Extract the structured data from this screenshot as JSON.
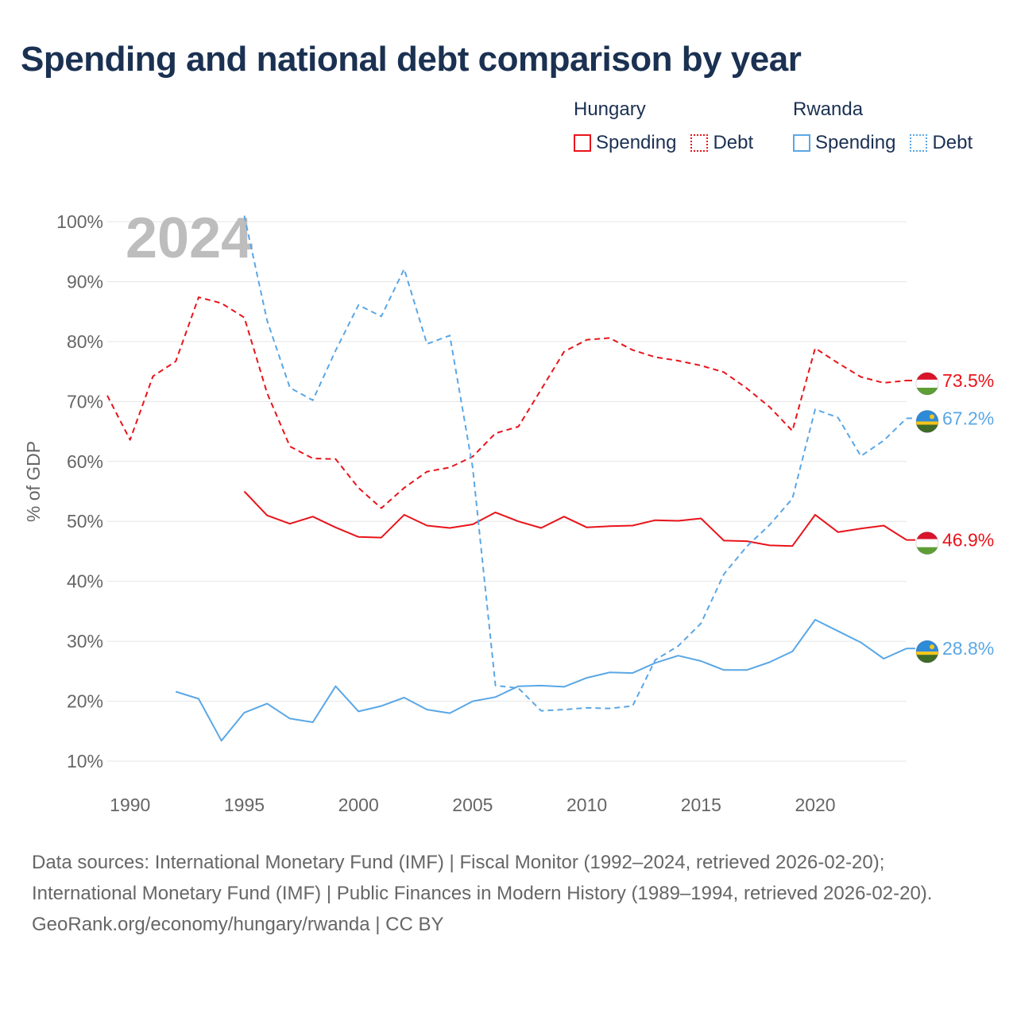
{
  "title": "Spending and national debt comparison by year",
  "legend": {
    "groups": [
      {
        "name": "Hungary",
        "color": "#e8141b",
        "items": [
          "Spending",
          "Debt"
        ]
      },
      {
        "name": "Rwanda",
        "color": "#5aa7e6",
        "items": [
          "Spending",
          "Debt"
        ]
      }
    ]
  },
  "chart_data": {
    "type": "line",
    "title": "Spending and national debt comparison by year",
    "ylabel": "% of GDP",
    "xlabel": "",
    "watermark": "2024",
    "xlim": [
      1989,
      2024
    ],
    "ylim": [
      10,
      100
    ],
    "xticks": [
      "1990",
      "1995",
      "2000",
      "2005",
      "2010",
      "2015",
      "2020"
    ],
    "yticks": [
      "10%",
      "20%",
      "30%",
      "40%",
      "50%",
      "60%",
      "70%",
      "80%",
      "90%",
      "100%"
    ],
    "series": [
      {
        "name": "Hungary Debt",
        "country": "Hungary",
        "metric": "Debt",
        "style": "dashed",
        "color": "#e8141b",
        "end_label": "73.5%",
        "flag": "hungary",
        "x": [
          1989,
          1990,
          1991,
          1992,
          1993,
          1994,
          1995,
          1996,
          1997,
          1998,
          1999,
          2000,
          2001,
          2002,
          2003,
          2004,
          2005,
          2006,
          2007,
          2008,
          2009,
          2010,
          2011,
          2012,
          2013,
          2014,
          2015,
          2016,
          2017,
          2018,
          2019,
          2020,
          2021,
          2022,
          2023,
          2024
        ],
        "values": [
          71.0,
          63.6,
          74.2,
          76.7,
          87.4,
          86.4,
          84.0,
          71.4,
          62.5,
          60.5,
          60.4,
          55.6,
          52.2,
          55.6,
          58.3,
          59.0,
          60.8,
          64.7,
          65.8,
          72.0,
          78.3,
          80.3,
          80.6,
          78.6,
          77.4,
          76.8,
          76.0,
          74.9,
          72.2,
          69.1,
          65.1,
          78.9,
          76.4,
          74.1,
          73.1,
          73.5
        ]
      },
      {
        "name": "Hungary Spending",
        "country": "Hungary",
        "metric": "Spending",
        "style": "solid",
        "color": "#e8141b",
        "end_label": "46.9%",
        "flag": "hungary",
        "x": [
          1995,
          1996,
          1997,
          1998,
          1999,
          2000,
          2001,
          2002,
          2003,
          2004,
          2005,
          2006,
          2007,
          2008,
          2009,
          2010,
          2011,
          2012,
          2013,
          2014,
          2015,
          2016,
          2017,
          2018,
          2019,
          2020,
          2021,
          2022,
          2023,
          2024
        ],
        "values": [
          55.0,
          51.0,
          49.6,
          50.8,
          49.0,
          47.4,
          47.3,
          51.1,
          49.3,
          48.9,
          49.5,
          51.5,
          50.0,
          48.9,
          50.8,
          49.0,
          49.2,
          49.3,
          50.2,
          50.1,
          50.5,
          46.8,
          46.7,
          46.0,
          45.9,
          51.1,
          48.2,
          48.8,
          49.3,
          46.9
        ]
      },
      {
        "name": "Rwanda Debt",
        "country": "Rwanda",
        "metric": "Debt",
        "style": "dashed",
        "color": "#5aa7e6",
        "end_label": "67.2%",
        "flag": "rwanda",
        "x": [
          1995,
          1996,
          1997,
          1998,
          1999,
          2000,
          2001,
          2002,
          2003,
          2004,
          2005,
          2006,
          2007,
          2008,
          2009,
          2010,
          2011,
          2012,
          2013,
          2014,
          2015,
          2016,
          2017,
          2018,
          2019,
          2020,
          2021,
          2022,
          2023,
          2024
        ],
        "values": [
          101.0,
          83.5,
          72.3,
          70.2,
          78.5,
          86.1,
          84.2,
          92.1,
          79.6,
          81.0,
          59.0,
          22.6,
          22.2,
          18.4,
          18.6,
          18.9,
          18.8,
          19.2,
          26.9,
          29.2,
          33.0,
          41.2,
          45.8,
          49.4,
          53.8,
          68.7,
          67.3,
          60.9,
          63.5,
          67.2
        ]
      },
      {
        "name": "Rwanda Spending",
        "country": "Rwanda",
        "metric": "Spending",
        "style": "solid",
        "color": "#5aa7e6",
        "end_label": "28.8%",
        "flag": "rwanda",
        "x": [
          1992,
          1993,
          1994,
          1995,
          1996,
          1997,
          1998,
          1999,
          2000,
          2001,
          2002,
          2003,
          2004,
          2005,
          2006,
          2007,
          2008,
          2009,
          2010,
          2011,
          2012,
          2013,
          2014,
          2015,
          2016,
          2017,
          2018,
          2019,
          2020,
          2021,
          2022,
          2023,
          2024
        ],
        "values": [
          21.6,
          20.4,
          13.4,
          18.1,
          19.6,
          17.1,
          16.5,
          22.5,
          18.3,
          19.2,
          20.6,
          18.6,
          18.0,
          20.0,
          20.7,
          22.5,
          22.6,
          22.4,
          23.9,
          24.8,
          24.7,
          26.4,
          27.6,
          26.7,
          25.2,
          25.2,
          26.5,
          28.3,
          33.6,
          31.7,
          29.8,
          27.1,
          28.8
        ]
      }
    ]
  },
  "footer": {
    "sources": "Data sources: International Monetary Fund (IMF) | Fiscal Monitor (1992–2024, retrieved 2026-02-20); International Monetary Fund (IMF) | Public Finances in Modern History (1989–1994, retrieved 2026-02-20).",
    "credit": "GeoRank.org/economy/hungary/rwanda | CC BY"
  }
}
